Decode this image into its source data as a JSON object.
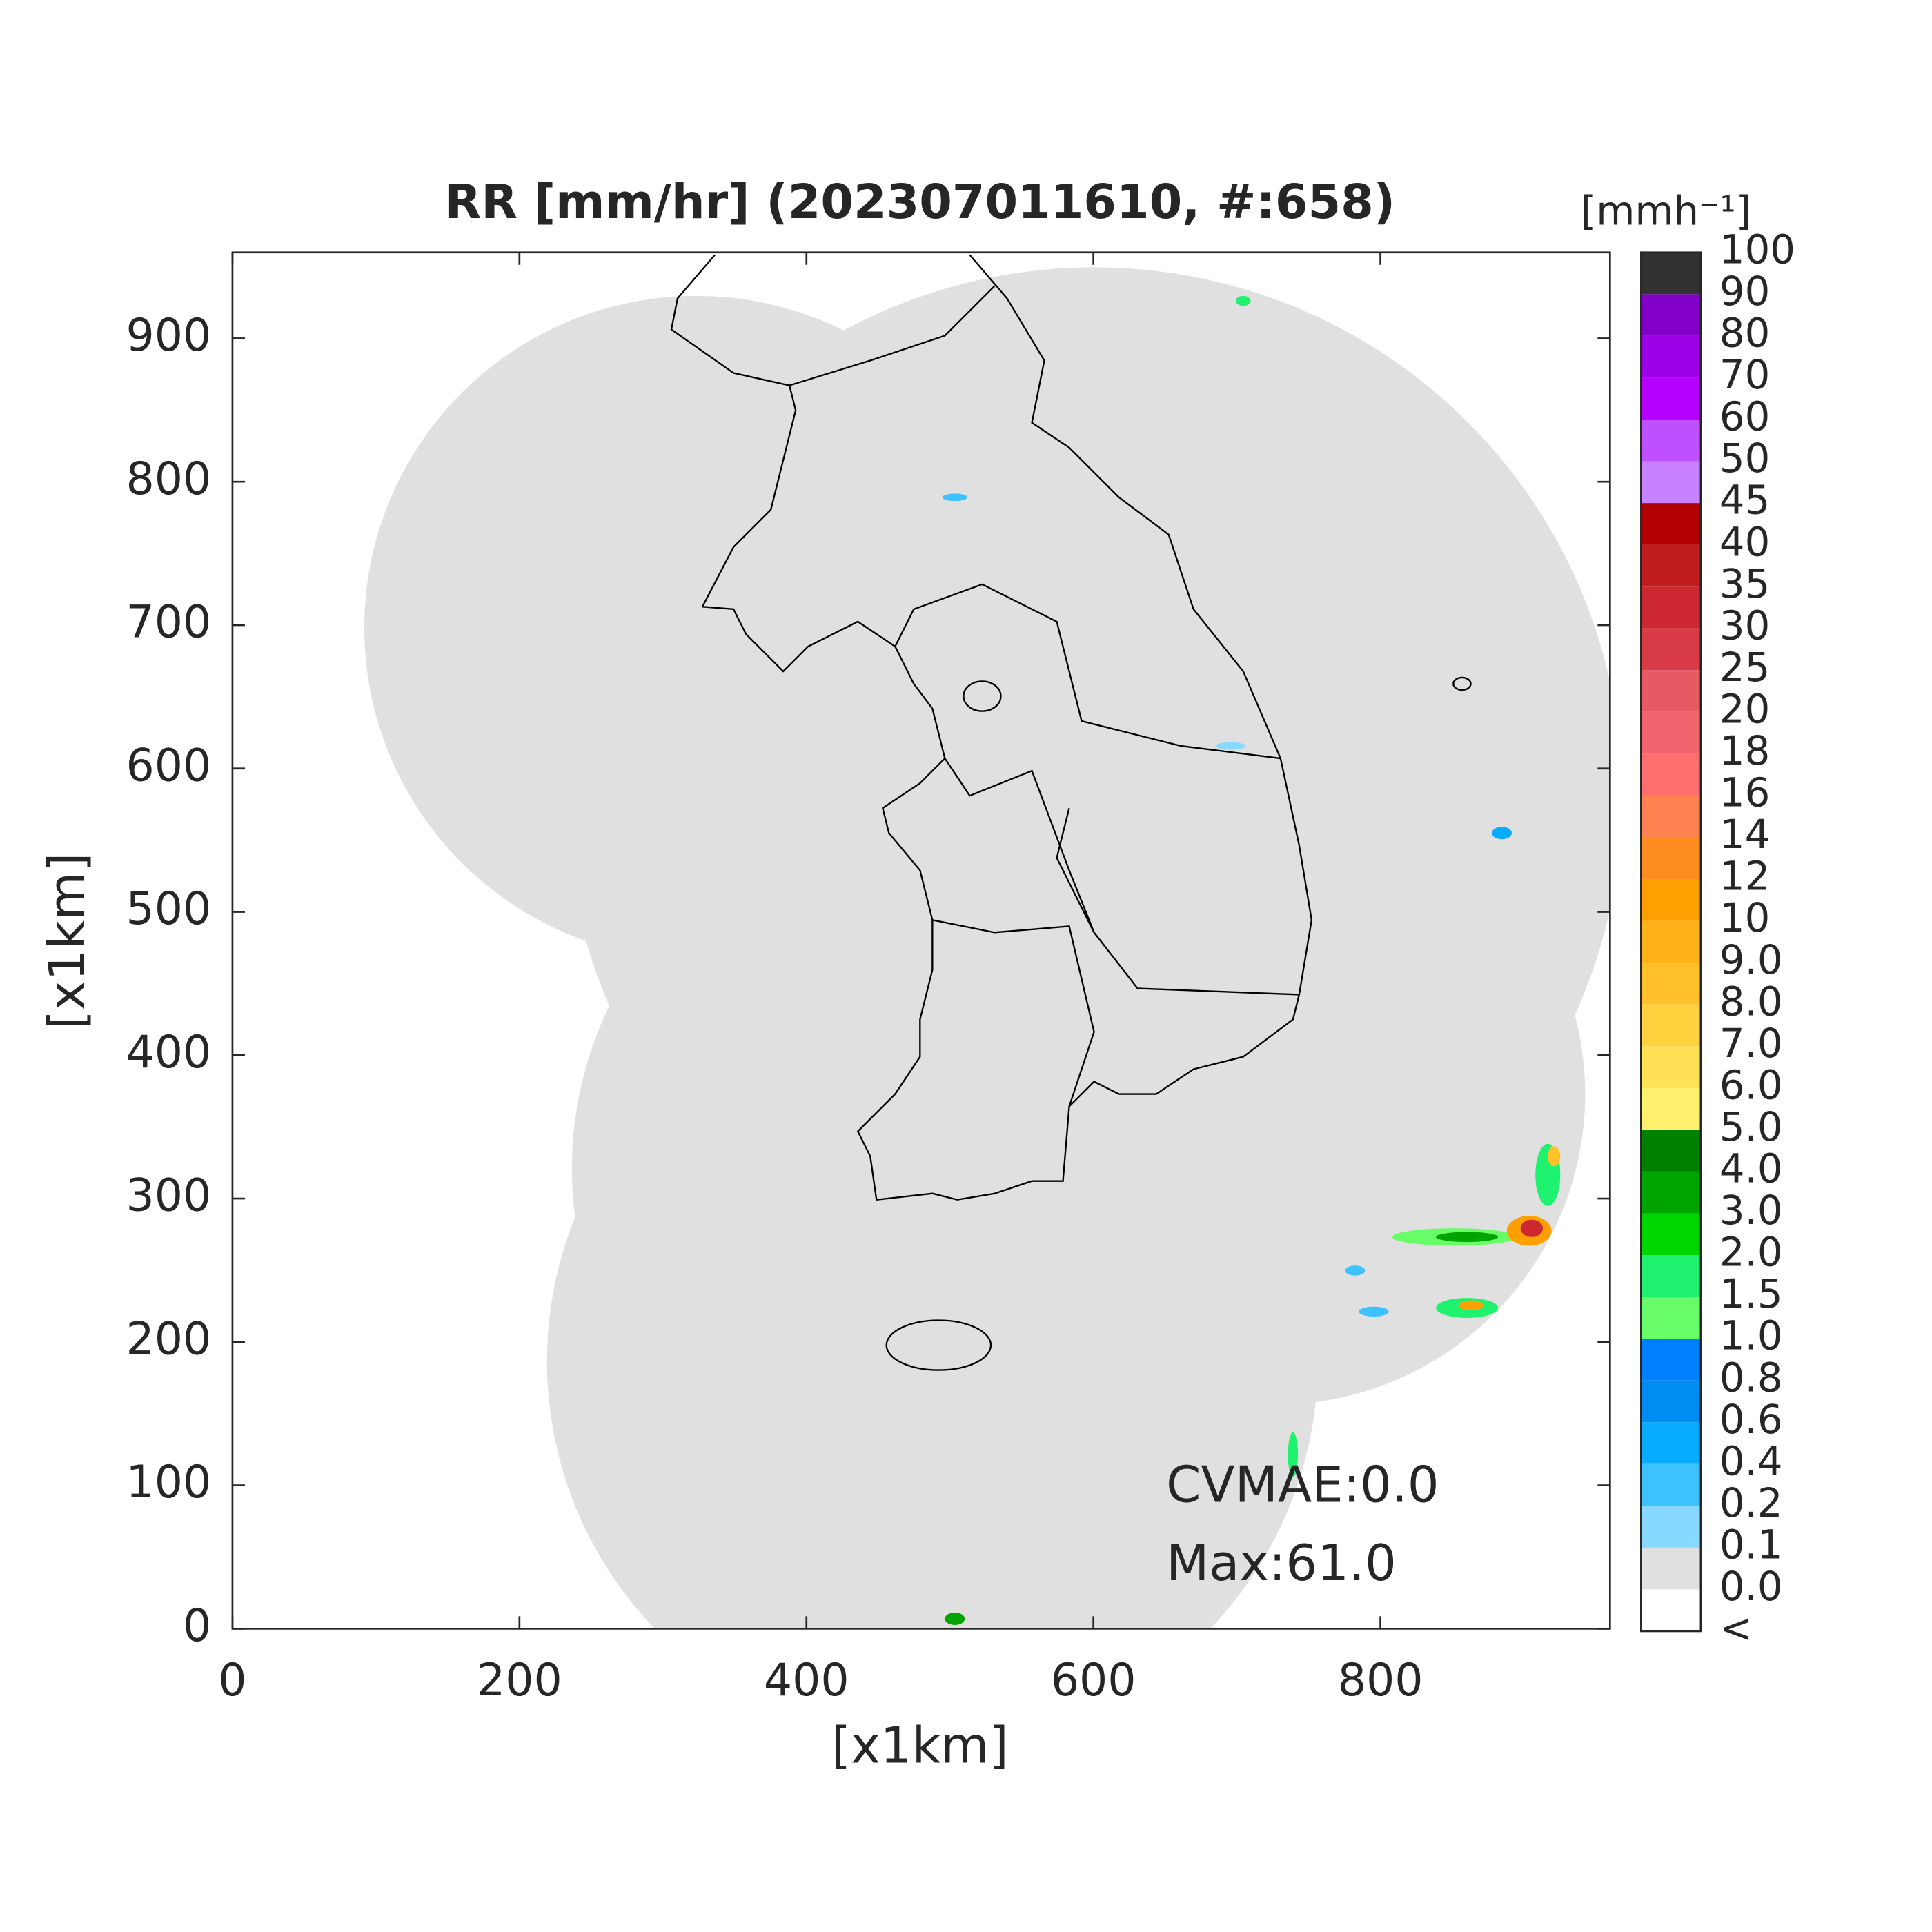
{
  "chart_data": {
    "type": "map",
    "title": "RR [mm/hr] (202307011610, #:658)",
    "x_label": "[x1km]",
    "y_label": "[x1km]",
    "xlim": [
      0,
      960
    ],
    "ylim": [
      0,
      960
    ],
    "xticks": [
      0,
      200,
      400,
      600,
      800
    ],
    "yticks": [
      0,
      100,
      200,
      300,
      400,
      500,
      600,
      700,
      800,
      900
    ],
    "grid": false,
    "annotations": [
      "CVMAE:0.0",
      "Max:61.0"
    ],
    "colorbar": {
      "unit": "[mmh⁻¹]",
      "labels": [
        "<",
        "0.0",
        "0.1",
        "0.2",
        "0.4",
        "0.6",
        "0.8",
        "1.0",
        "1.5",
        "2.0",
        "3.0",
        "4.0",
        "5.0",
        "6.0",
        "7.0",
        "8.0",
        "9.0",
        "10",
        "12",
        "14",
        "16",
        "18",
        "20",
        "25",
        "30",
        "35",
        "40",
        "45",
        "50",
        "60",
        "70",
        "80",
        "90",
        "100"
      ],
      "colors": [
        "#ffffff",
        "#e0e0e0",
        "#87d9ff",
        "#3ec1ff",
        "#07abff",
        "#008cf0",
        "#0080ff",
        "#69fc69",
        "#1ef26e",
        "#00d500",
        "#00a400",
        "#008000",
        "#fff06e",
        "#ffe155",
        "#ffd13d",
        "#ffc12a",
        "#ffb11a",
        "#ffa000",
        "#ff8c1e",
        "#ff8250",
        "#ff6e6e",
        "#f0646e",
        "#e65a64",
        "#d73c46",
        "#cd2832",
        "#c01e1e",
        "#b30000",
        "#c882ff",
        "#be50ff",
        "#b400ff",
        "#9b00e6",
        "#8200c8",
        "#323232"
      ]
    }
  }
}
